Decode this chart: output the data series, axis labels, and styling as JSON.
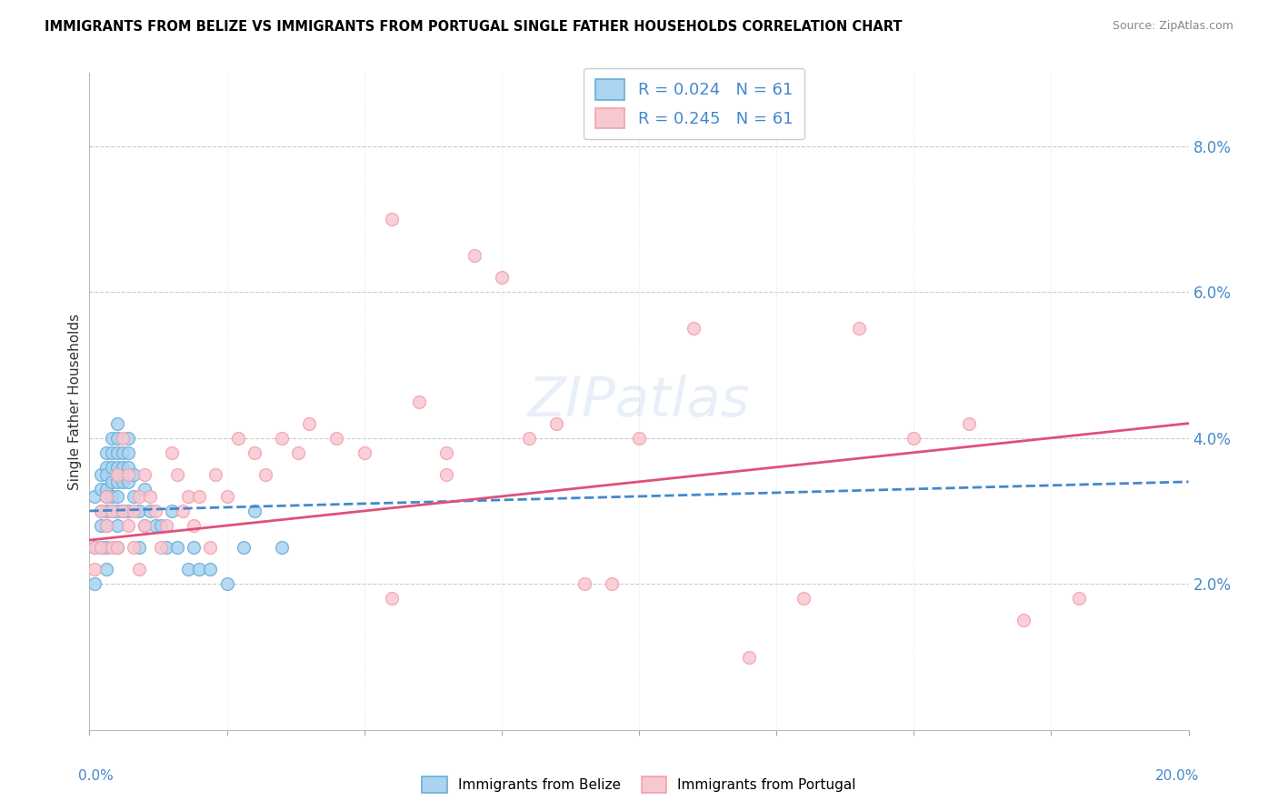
{
  "title": "IMMIGRANTS FROM BELIZE VS IMMIGRANTS FROM PORTUGAL SINGLE FATHER HOUSEHOLDS CORRELATION CHART",
  "source": "Source: ZipAtlas.com",
  "ylabel": "Single Father Households",
  "legend_label1": "R = 0.024   N = 61",
  "legend_label2": "R = 0.245   N = 61",
  "belize_color": "#6aaed6",
  "belize_color_fill": "#aad4f0",
  "portugal_color": "#f4a0b0",
  "portugal_color_fill": "#f8c8d0",
  "trend_belize_color": "#4488cc",
  "trend_portugal_color": "#e0507a",
  "xlim": [
    0,
    0.2
  ],
  "ylim": [
    0,
    0.09
  ],
  "belize_x": [
    0.001,
    0.001,
    0.001,
    0.002,
    0.002,
    0.002,
    0.002,
    0.002,
    0.003,
    0.003,
    0.003,
    0.003,
    0.003,
    0.003,
    0.003,
    0.003,
    0.003,
    0.004,
    0.004,
    0.004,
    0.004,
    0.004,
    0.004,
    0.005,
    0.005,
    0.005,
    0.005,
    0.005,
    0.005,
    0.005,
    0.005,
    0.005,
    0.006,
    0.006,
    0.006,
    0.006,
    0.007,
    0.007,
    0.007,
    0.007,
    0.007,
    0.008,
    0.008,
    0.009,
    0.009,
    0.01,
    0.01,
    0.011,
    0.012,
    0.013,
    0.014,
    0.015,
    0.016,
    0.018,
    0.019,
    0.02,
    0.022,
    0.025,
    0.028,
    0.03,
    0.035
  ],
  "belize_y": [
    0.032,
    0.025,
    0.02,
    0.035,
    0.033,
    0.03,
    0.028,
    0.025,
    0.038,
    0.036,
    0.035,
    0.033,
    0.032,
    0.03,
    0.028,
    0.025,
    0.022,
    0.04,
    0.038,
    0.036,
    0.034,
    0.032,
    0.03,
    0.042,
    0.04,
    0.038,
    0.036,
    0.034,
    0.032,
    0.03,
    0.028,
    0.025,
    0.038,
    0.036,
    0.034,
    0.03,
    0.04,
    0.038,
    0.036,
    0.034,
    0.03,
    0.035,
    0.032,
    0.03,
    0.025,
    0.033,
    0.028,
    0.03,
    0.028,
    0.028,
    0.025,
    0.03,
    0.025,
    0.022,
    0.025,
    0.022,
    0.022,
    0.02,
    0.025,
    0.03,
    0.025
  ],
  "portugal_x": [
    0.001,
    0.001,
    0.002,
    0.002,
    0.003,
    0.003,
    0.004,
    0.004,
    0.005,
    0.005,
    0.006,
    0.006,
    0.007,
    0.007,
    0.008,
    0.008,
    0.009,
    0.009,
    0.01,
    0.01,
    0.011,
    0.012,
    0.013,
    0.014,
    0.015,
    0.016,
    0.017,
    0.018,
    0.019,
    0.02,
    0.022,
    0.023,
    0.025,
    0.027,
    0.03,
    0.032,
    0.035,
    0.038,
    0.04,
    0.045,
    0.05,
    0.055,
    0.06,
    0.065,
    0.07,
    0.08,
    0.09,
    0.1,
    0.11,
    0.12,
    0.13,
    0.14,
    0.15,
    0.16,
    0.17,
    0.18,
    0.055,
    0.065,
    0.075,
    0.085,
    0.095
  ],
  "portugal_y": [
    0.025,
    0.022,
    0.03,
    0.025,
    0.032,
    0.028,
    0.03,
    0.025,
    0.035,
    0.025,
    0.04,
    0.03,
    0.035,
    0.028,
    0.03,
    0.025,
    0.032,
    0.022,
    0.035,
    0.028,
    0.032,
    0.03,
    0.025,
    0.028,
    0.038,
    0.035,
    0.03,
    0.032,
    0.028,
    0.032,
    0.025,
    0.035,
    0.032,
    0.04,
    0.038,
    0.035,
    0.04,
    0.038,
    0.042,
    0.04,
    0.038,
    0.018,
    0.045,
    0.038,
    0.065,
    0.04,
    0.02,
    0.04,
    0.055,
    0.01,
    0.018,
    0.055,
    0.04,
    0.042,
    0.015,
    0.018,
    0.07,
    0.035,
    0.062,
    0.042,
    0.02
  ],
  "trend_belize_x0": 0.0,
  "trend_belize_x1": 0.2,
  "trend_belize_y0": 0.03,
  "trend_belize_y1": 0.034,
  "trend_portugal_x0": 0.0,
  "trend_portugal_x1": 0.2,
  "trend_portugal_y0": 0.026,
  "trend_portugal_y1": 0.042
}
